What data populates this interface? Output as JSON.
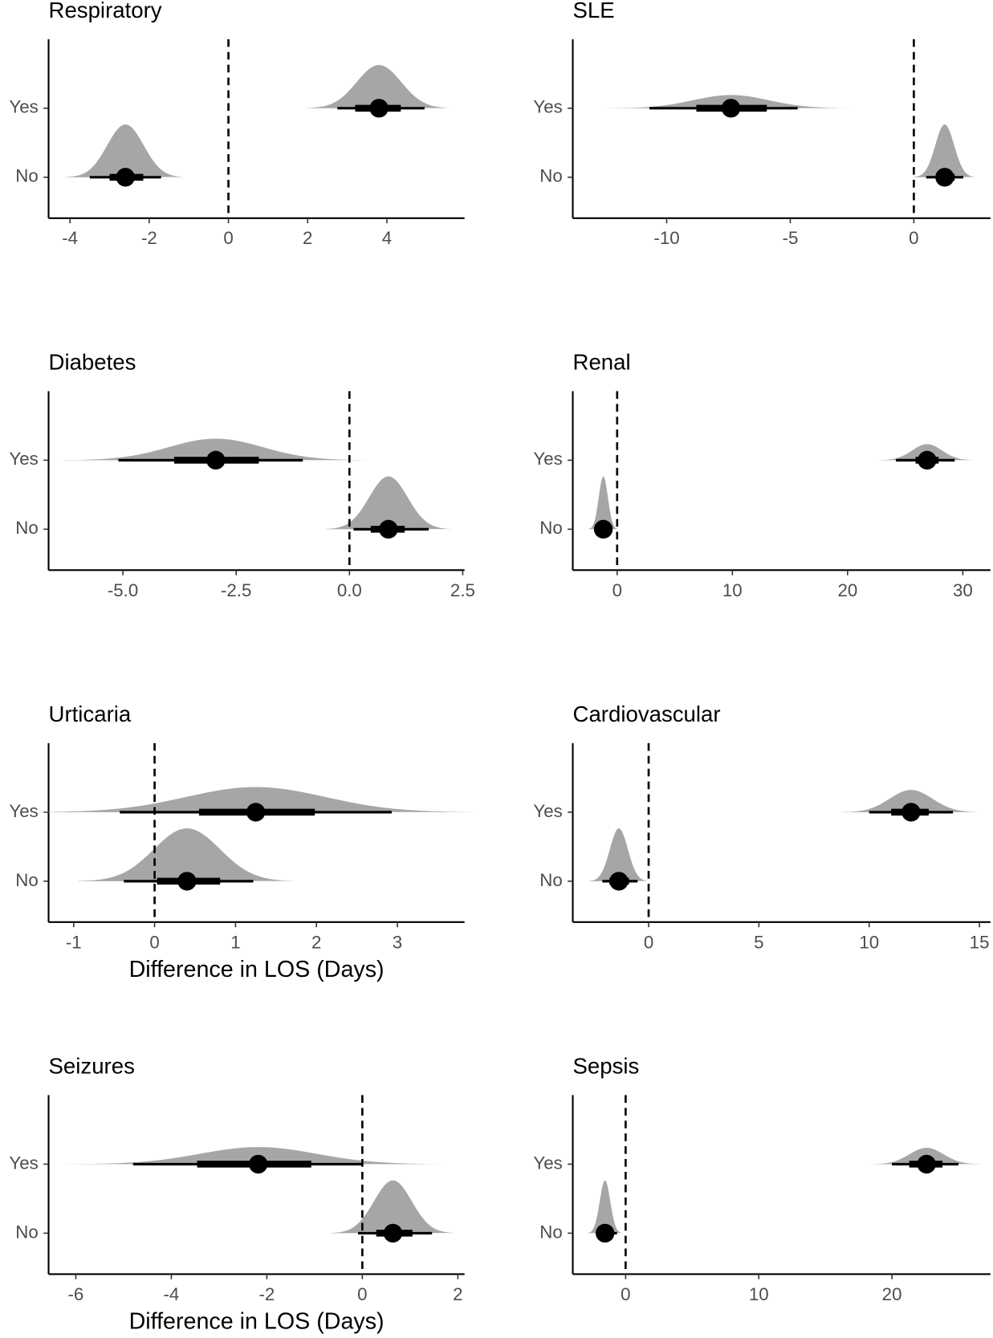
{
  "chart_data": [
    {
      "type": "halfeye",
      "title": "Respiratory",
      "categories": [
        "Yes",
        "No"
      ],
      "values": [
        3.8,
        -2.6
      ],
      "inner": [
        [
          3.2,
          4.35
        ],
        [
          -3.0,
          -2.15
        ]
      ],
      "outer": [
        [
          2.75,
          4.95
        ],
        [
          -3.5,
          -1.7
        ]
      ],
      "xlim": [
        -4.54,
        5.96
      ],
      "xticks": [
        -4,
        -2,
        0,
        2,
        4
      ],
      "ref_line": 0,
      "color": "#a6a6a6"
    },
    {
      "type": "halfeye",
      "title": "SLE",
      "categories": [
        "Yes",
        "No"
      ],
      "values": [
        -7.4,
        1.25
      ],
      "inner": [
        [
          -8.8,
          -5.95
        ],
        [
          0.9,
          1.65
        ]
      ],
      "outer": [
        [
          -10.7,
          -4.7
        ],
        [
          0.5,
          2.0
        ]
      ],
      "xlim": [
        -13.8,
        3.1
      ],
      "xticks": [
        -10,
        -5,
        0
      ],
      "ref_line": 0,
      "color": "#a6a6a6"
    },
    {
      "type": "halfeye",
      "title": "Diabetes",
      "categories": [
        "Yes",
        "No"
      ],
      "values": [
        -2.95,
        0.86
      ],
      "inner": [
        [
          -3.87,
          -2.0
        ],
        [
          0.47,
          1.22
        ]
      ],
      "outer": [
        [
          -5.1,
          -1.03
        ],
        [
          0.09,
          1.75
        ]
      ],
      "xlim": [
        -6.64,
        2.54
      ],
      "xticks": [
        {
          "value": -5,
          "label": "-5.0"
        },
        -2.5,
        {
          "value": 0,
          "label": "0.0"
        },
        2.5
      ],
      "ref_line": 0,
      "color": "#a6a6a6"
    },
    {
      "type": "halfeye",
      "title": "Renal",
      "categories": [
        "Yes",
        "No"
      ],
      "values": [
        26.9,
        -1.2
      ],
      "inner": [
        [
          25.9,
          27.9
        ],
        [
          -1.7,
          -0.75
        ]
      ],
      "outer": [
        [
          24.2,
          29.3
        ],
        [
          -2.0,
          -0.45
        ]
      ],
      "xlim": [
        -3.85,
        32.4
      ],
      "xticks": [
        0,
        10,
        20,
        30
      ],
      "ref_line": 0,
      "color": "#a6a6a6"
    },
    {
      "type": "halfeye",
      "title": "Urticaria",
      "categories": [
        "Yes",
        "No"
      ],
      "values": [
        1.25,
        0.4
      ],
      "inner": [
        [
          0.55,
          1.98
        ],
        [
          0.03,
          0.81
        ]
      ],
      "outer": [
        [
          -0.43,
          2.93
        ],
        [
          -0.38,
          1.22
        ]
      ],
      "xlim": [
        -1.31,
        3.83
      ],
      "xticks": [
        -1,
        0,
        1,
        2,
        3
      ],
      "ref_line": 0,
      "color": "#a6a6a6",
      "xlabel": "Difference in LOS (Days)"
    },
    {
      "type": "halfeye",
      "title": "Cardiovascular",
      "categories": [
        "Yes",
        "No"
      ],
      "values": [
        11.9,
        -1.35
      ],
      "inner": [
        [
          11.0,
          12.7
        ],
        [
          -1.78,
          -0.89
        ]
      ],
      "outer": [
        [
          10.0,
          13.8
        ],
        [
          -2.1,
          -0.5
        ]
      ],
      "xlim": [
        -3.44,
        15.5
      ],
      "xticks": [
        0,
        5,
        10,
        15
      ],
      "ref_line": 0,
      "color": "#a6a6a6"
    },
    {
      "type": "halfeye",
      "title": "Seizures",
      "categories": [
        "Yes",
        "No"
      ],
      "values": [
        -2.18,
        0.64
      ],
      "inner": [
        [
          -3.46,
          -1.07
        ],
        [
          0.29,
          1.05
        ]
      ],
      "outer": [
        [
          -4.8,
          0.0
        ],
        [
          -0.09,
          1.46
        ]
      ],
      "xlim": [
        -6.57,
        2.14
      ],
      "xticks": [
        -6,
        -4,
        -2,
        0,
        2
      ],
      "ref_line": 0,
      "color": "#a6a6a6",
      "xlabel": "Difference in LOS (Days)"
    },
    {
      "type": "halfeye",
      "title": "Sepsis",
      "categories": [
        "Yes",
        "No"
      ],
      "values": [
        22.6,
        -1.55
      ],
      "inner": [
        [
          21.3,
          23.8
        ],
        [
          -1.85,
          -1.1
        ]
      ],
      "outer": [
        [
          20.0,
          25.0
        ],
        [
          -2.2,
          -0.65
        ]
      ],
      "xlim": [
        -3.97,
        27.4
      ],
      "xticks": [
        0,
        10,
        20
      ],
      "ref_line": 0,
      "color": "#a6a6a6"
    }
  ]
}
